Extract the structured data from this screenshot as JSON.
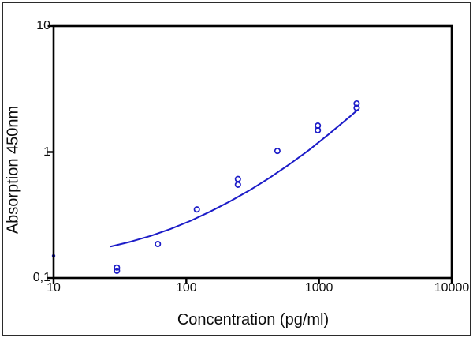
{
  "figure": {
    "xlabel": "Concentration (pg/ml)",
    "ylabel": "Absorption 450nm"
  },
  "colors": {
    "series_blue": "#1c1cc8",
    "axis_black": "#000000",
    "text": "#0d0d0d",
    "background": "#ffffff"
  },
  "chart_data": {
    "type": "scatter",
    "title": "",
    "xlabel": "Concentration (pg/ml)",
    "ylabel": "Absorption 450nm",
    "x_scale": "log",
    "y_scale": "log",
    "xlim": [
      10,
      10000
    ],
    "ylim": [
      0.1,
      10
    ],
    "x_ticks": [
      10,
      100,
      1000,
      10000
    ],
    "x_tick_labels": [
      "10",
      "100",
      "1000",
      "10000"
    ],
    "y_ticks": [
      0.1,
      1,
      10
    ],
    "y_tick_labels": [
      "0,1",
      "1",
      "10"
    ],
    "grid": false,
    "legend": false,
    "marker": "open-circle",
    "points": [
      {
        "concentration": 30,
        "absorbance": 0.121
      },
      {
        "concentration": 30,
        "absorbance": 0.114
      },
      {
        "concentration": 61,
        "absorbance": 0.186
      },
      {
        "concentration": 120,
        "absorbance": 0.35
      },
      {
        "concentration": 245,
        "absorbance": 0.61
      },
      {
        "concentration": 245,
        "absorbance": 0.55
      },
      {
        "concentration": 486,
        "absorbance": 1.02
      },
      {
        "concentration": 980,
        "absorbance": 1.62
      },
      {
        "concentration": 980,
        "absorbance": 1.49
      },
      {
        "concentration": 1920,
        "absorbance": 2.43
      },
      {
        "concentration": 1920,
        "absorbance": 2.24
      }
    ],
    "clipped_point": {
      "concentration": 10,
      "absorbance": 0.15
    },
    "fit_curve": [
      [
        27,
        0.178
      ],
      [
        38,
        0.194
      ],
      [
        54,
        0.216
      ],
      [
        76,
        0.245
      ],
      [
        108,
        0.285
      ],
      [
        152,
        0.337
      ],
      [
        214,
        0.406
      ],
      [
        301,
        0.498
      ],
      [
        425,
        0.625
      ],
      [
        599,
        0.8
      ],
      [
        843,
        1.04
      ],
      [
        1188,
        1.39
      ],
      [
        1675,
        1.88
      ],
      [
        1950,
        2.16
      ]
    ]
  }
}
